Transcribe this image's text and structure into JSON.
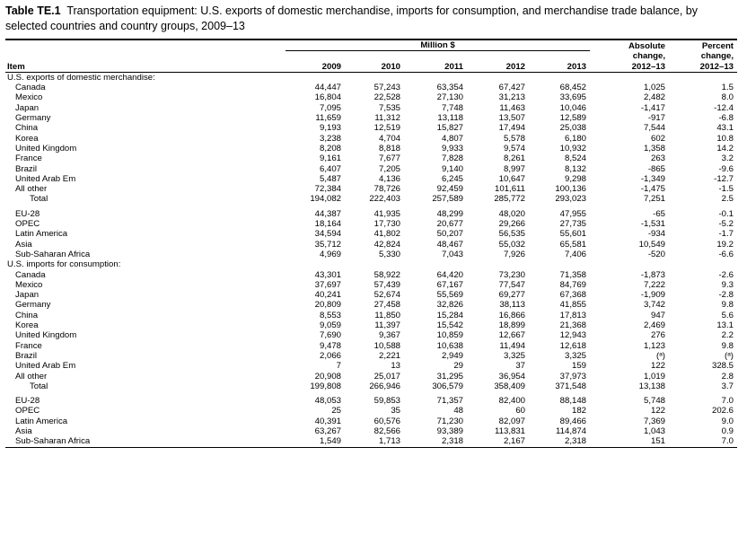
{
  "title": {
    "label": "Table TE.1",
    "text": "Transportation equipment: U.S. exports of domestic merchandise, imports for consumption, and merchandise trade balance, by selected countries and country groups, 2009–13"
  },
  "header": {
    "unit": "Million $",
    "item": "Item",
    "years": [
      "2009",
      "2010",
      "2011",
      "2012",
      "2013"
    ],
    "abs_change": [
      "Absolute",
      "change,",
      "2012–13"
    ],
    "pct_change": [
      "Percent",
      "change,",
      "2012–13"
    ]
  },
  "sections": [
    {
      "title": "U.S. exports of domestic merchandise:",
      "rows": [
        [
          "Canada",
          "44,447",
          "57,243",
          "63,354",
          "67,427",
          "68,452",
          "1,025",
          "1.5"
        ],
        [
          "Mexico",
          "16,804",
          "22,528",
          "27,130",
          "31,213",
          "33,695",
          "2,482",
          "8.0"
        ],
        [
          "Japan",
          "7,095",
          "7,535",
          "7,748",
          "11,463",
          "10,046",
          "-1,417",
          "-12.4"
        ],
        [
          "Germany",
          "11,659",
          "11,312",
          "13,118",
          "13,507",
          "12,589",
          "-917",
          "-6.8"
        ],
        [
          "China",
          "9,193",
          "12,519",
          "15,827",
          "17,494",
          "25,038",
          "7,544",
          "43.1"
        ],
        [
          "Korea",
          "3,238",
          "4,704",
          "4,807",
          "5,578",
          "6,180",
          "602",
          "10.8"
        ],
        [
          "United Kingdom",
          "8,208",
          "8,818",
          "9,933",
          "9,574",
          "10,932",
          "1,358",
          "14.2"
        ],
        [
          "France",
          "9,161",
          "7,677",
          "7,828",
          "8,261",
          "8,524",
          "263",
          "3.2"
        ],
        [
          "Brazil",
          "6,407",
          "7,205",
          "9,140",
          "8,997",
          "8,132",
          "-865",
          "-9.6"
        ],
        [
          "United Arab Em",
          "5,487",
          "4,136",
          "6,245",
          "10,647",
          "9,298",
          "-1,349",
          "-12.7"
        ],
        [
          "All other",
          "72,384",
          "78,726",
          "92,459",
          "101,611",
          "100,136",
          "-1,475",
          "-1.5"
        ]
      ],
      "total": [
        "Total",
        "194,082",
        "222,403",
        "257,589",
        "285,772",
        "293,023",
        "7,251",
        "2.5"
      ],
      "groups": [
        [
          "EU-28",
          "44,387",
          "41,935",
          "48,299",
          "48,020",
          "47,955",
          "-65",
          "-0.1"
        ],
        [
          "OPEC",
          "18,164",
          "17,730",
          "20,677",
          "29,266",
          "27,735",
          "-1,531",
          "-5.2"
        ],
        [
          "Latin America",
          "34,594",
          "41,802",
          "50,207",
          "56,535",
          "55,601",
          "-934",
          "-1.7"
        ],
        [
          "Asia",
          "35,712",
          "42,824",
          "48,467",
          "55,032",
          "65,581",
          "10,549",
          "19.2"
        ],
        [
          "Sub-Saharan Africa",
          "4,969",
          "5,330",
          "7,043",
          "7,926",
          "7,406",
          "-520",
          "-6.6"
        ]
      ]
    },
    {
      "title": "U.S. imports for consumption:",
      "rows": [
        [
          "Canada",
          "43,301",
          "58,922",
          "64,420",
          "73,230",
          "71,358",
          "-1,873",
          "-2.6"
        ],
        [
          "Mexico",
          "37,697",
          "57,439",
          "67,167",
          "77,547",
          "84,769",
          "7,222",
          "9.3"
        ],
        [
          "Japan",
          "40,241",
          "52,674",
          "55,569",
          "69,277",
          "67,368",
          "-1,909",
          "-2.8"
        ],
        [
          "Germany",
          "20,809",
          "27,458",
          "32,826",
          "38,113",
          "41,855",
          "3,742",
          "9.8"
        ],
        [
          "China",
          "8,553",
          "11,850",
          "15,284",
          "16,866",
          "17,813",
          "947",
          "5.6"
        ],
        [
          "Korea",
          "9,059",
          "11,397",
          "15,542",
          "18,899",
          "21,368",
          "2,469",
          "13.1"
        ],
        [
          "United Kingdom",
          "7,690",
          "9,367",
          "10,859",
          "12,667",
          "12,943",
          "276",
          "2.2"
        ],
        [
          "France",
          "9,478",
          "10,588",
          "10,638",
          "11,494",
          "12,618",
          "1,123",
          "9.8"
        ],
        [
          "Brazil",
          "2,066",
          "2,221",
          "2,949",
          "3,325",
          "3,325",
          "(ᵃ)",
          "(ᵃ)"
        ],
        [
          "United Arab Em",
          "7",
          "13",
          "29",
          "37",
          "159",
          "122",
          "328.5"
        ],
        [
          "All other",
          "20,908",
          "25,017",
          "31,295",
          "36,954",
          "37,973",
          "1,019",
          "2.8"
        ]
      ],
      "total": [
        "Total",
        "199,808",
        "266,946",
        "306,579",
        "358,409",
        "371,548",
        "13,138",
        "3.7"
      ],
      "groups": [
        [
          "EU-28",
          "48,053",
          "59,853",
          "71,357",
          "82,400",
          "88,148",
          "5,748",
          "7.0"
        ],
        [
          "OPEC",
          "25",
          "35",
          "48",
          "60",
          "182",
          "122",
          "202.6"
        ],
        [
          "Latin America",
          "40,391",
          "60,576",
          "71,230",
          "82,097",
          "89,466",
          "7,369",
          "9.0"
        ],
        [
          "Asia",
          "63,267",
          "82,566",
          "93,389",
          "113,831",
          "114,874",
          "1,043",
          "0.9"
        ],
        [
          "Sub-Saharan Africa",
          "1,549",
          "1,713",
          "2,318",
          "2,167",
          "2,318",
          "151",
          "7.0"
        ]
      ]
    }
  ]
}
